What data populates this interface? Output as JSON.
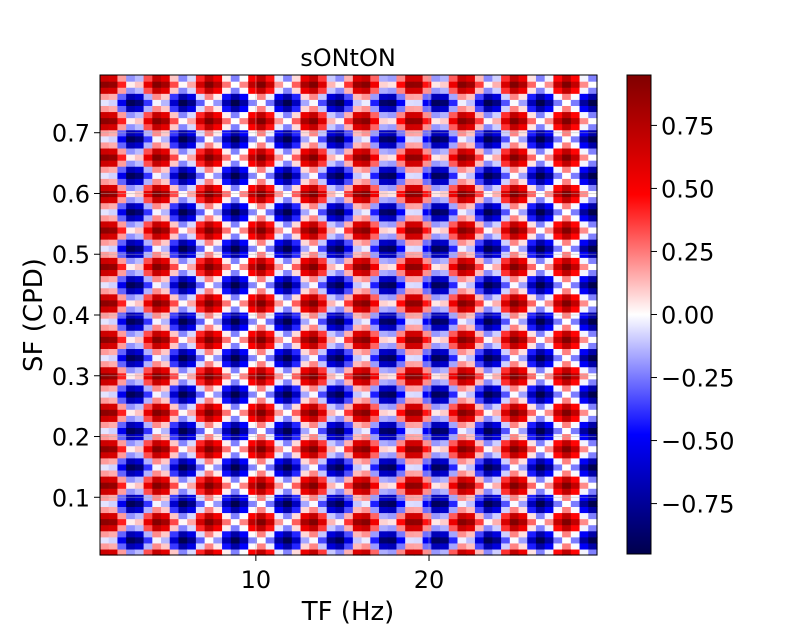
{
  "chart_data": {
    "type": "heatmap",
    "title": "sONtON",
    "xlabel": "TF (Hz)",
    "ylabel": "SF (CPD)",
    "xlim": [
      1,
      29.7
    ],
    "ylim": [
      0.005,
      0.795
    ],
    "x_ticks": [
      10,
      20
    ],
    "x_tick_labels": [
      "10",
      "20"
    ],
    "y_ticks": [
      0.1,
      0.2,
      0.3,
      0.4,
      0.5,
      0.6,
      0.7
    ],
    "y_tick_labels": [
      "0.1",
      "0.2",
      "0.3",
      "0.4",
      "0.5",
      "0.6",
      "0.7"
    ],
    "grid": true,
    "colormap": "seismic",
    "colorbar": {
      "vmin": -0.95,
      "vmax": 0.95,
      "ticks": [
        0.75,
        0.5,
        0.25,
        0.0,
        -0.25,
        -0.5,
        -0.75
      ],
      "tick_labels": [
        "0.75",
        "0.50",
        "0.25",
        "0.00",
        "−0.25",
        "−0.50",
        "−0.75"
      ]
    },
    "grid_size": {
      "cols": 57,
      "rows": 79
    },
    "pattern": "periodic interference: z = sin(2π(0.17·TF + 8.33·SF)) · sin(2π(0.17·TF − 8.33·SF)), SF period 0.24 CPD, TF sign flips at 7, 13.3, 20, 26.6 Hz"
  }
}
